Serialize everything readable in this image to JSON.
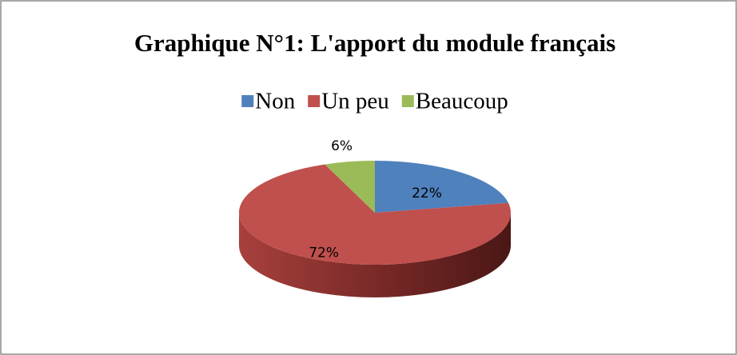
{
  "chart_data": {
    "type": "pie",
    "title": "Graphique N°1: L'apport du module français",
    "categories": [
      "Non",
      "Un peu",
      "Beaucoup"
    ],
    "values": [
      22,
      72,
      6
    ],
    "value_labels": [
      "22%",
      "72%",
      "6%"
    ],
    "colors": [
      "#4f81bd",
      "#c0504d",
      "#9bbb59"
    ],
    "legend": "top"
  }
}
